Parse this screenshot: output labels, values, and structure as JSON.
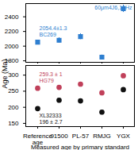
{
  "chart_data": [
    {
      "type": "scatter",
      "title": "60μm4J6,10Hz",
      "categories": [
        "Reference age",
        "91500",
        "PL-57",
        "RMJG",
        "YGX"
      ],
      "series": [
        {
          "name": "BC269",
          "color": "#2f7fd0",
          "marker": "square",
          "values": [
            2054.4,
            2080,
            2130,
            1850,
            2510
          ],
          "errors": [
            1.3,
            35,
            40,
            30,
            50
          ],
          "annotation": "2054.4±1.3"
        }
      ],
      "ylim": [
        1780,
        2580
      ],
      "yticks": [
        1800,
        2000,
        2200,
        2400
      ],
      "tick_labels": "y"
    },
    {
      "type": "scatter",
      "x_label": "Measured age by primary standard",
      "y_label": "Age (Ma)",
      "categories": [
        "Reference age",
        "91500",
        "PL-57",
        "RMJG",
        "YGX"
      ],
      "series": [
        {
          "name": "HG79",
          "color": "#c0405a",
          "marker": "circle",
          "values": [
            259.3,
            262,
            272,
            245,
            298
          ],
          "errors": [
            1,
            5,
            5,
            5,
            6
          ],
          "annotation": "259.3 ± 1"
        },
        {
          "name": "XL32333",
          "color": "#111111",
          "marker": "circle",
          "values": [
            196,
            222,
            220,
            185,
            255
          ],
          "errors": [
            2.7,
            5,
            5,
            5,
            6
          ],
          "annotation": "196 ± 2.7"
        }
      ],
      "ylim": [
        140,
        330
      ],
      "yticks": [
        150,
        200,
        250,
        300
      ]
    }
  ]
}
